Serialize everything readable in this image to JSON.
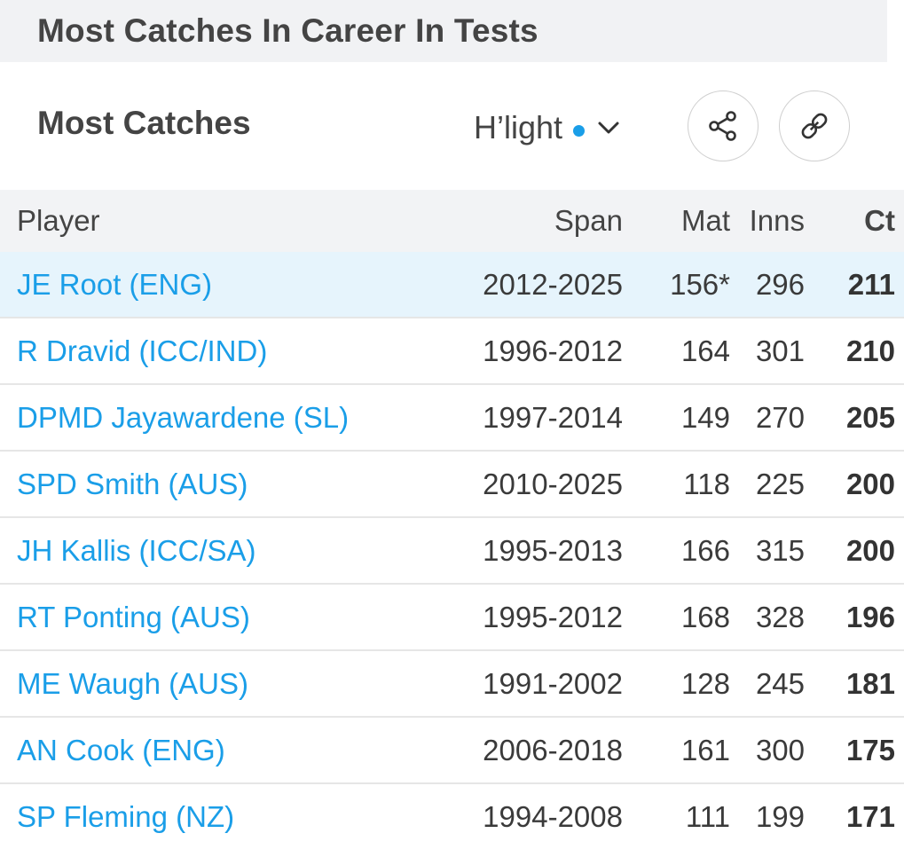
{
  "page": {
    "title": "Most Catches In Career In Tests"
  },
  "toolbar": {
    "section_title": "Most Catches",
    "highlight_label": "H’light",
    "highlight_dot_color": "#1a9ee8",
    "icons": {
      "chevron": "chevron-down-icon",
      "share": "share-icon",
      "link": "link-icon"
    }
  },
  "table": {
    "headers": {
      "player": "Player",
      "span": "Span",
      "mat": "Mat",
      "inns": "Inns",
      "ct": "Ct"
    },
    "rows": [
      {
        "player": "JE Root (ENG)",
        "span": "2012-2025",
        "mat": "156*",
        "inns": "296",
        "ct": "211",
        "highlighted": true
      },
      {
        "player": "R Dravid (ICC/IND)",
        "span": "1996-2012",
        "mat": "164",
        "inns": "301",
        "ct": "210"
      },
      {
        "player": "DPMD Jayawardene (SL)",
        "span": "1997-2014",
        "mat": "149",
        "inns": "270",
        "ct": "205"
      },
      {
        "player": "SPD Smith (AUS)",
        "span": "2010-2025",
        "mat": "118",
        "inns": "225",
        "ct": "200"
      },
      {
        "player": "JH Kallis (ICC/SA)",
        "span": "1995-2013",
        "mat": "166",
        "inns": "315",
        "ct": "200"
      },
      {
        "player": "RT Ponting (AUS)",
        "span": "1995-2012",
        "mat": "168",
        "inns": "328",
        "ct": "196"
      },
      {
        "player": "ME Waugh (AUS)",
        "span": "1991-2002",
        "mat": "128",
        "inns": "245",
        "ct": "181"
      },
      {
        "player": "AN Cook (ENG)",
        "span": "2006-2018",
        "mat": "161",
        "inns": "300",
        "ct": "175"
      },
      {
        "player": "SP Fleming (NZ)",
        "span": "1994-2008",
        "mat": "111",
        "inns": "199",
        "ct": "171"
      }
    ]
  },
  "colors": {
    "link": "#1a9ee8",
    "highlight_row": "#e6f4fc",
    "header_bg": "#f2f3f5"
  }
}
